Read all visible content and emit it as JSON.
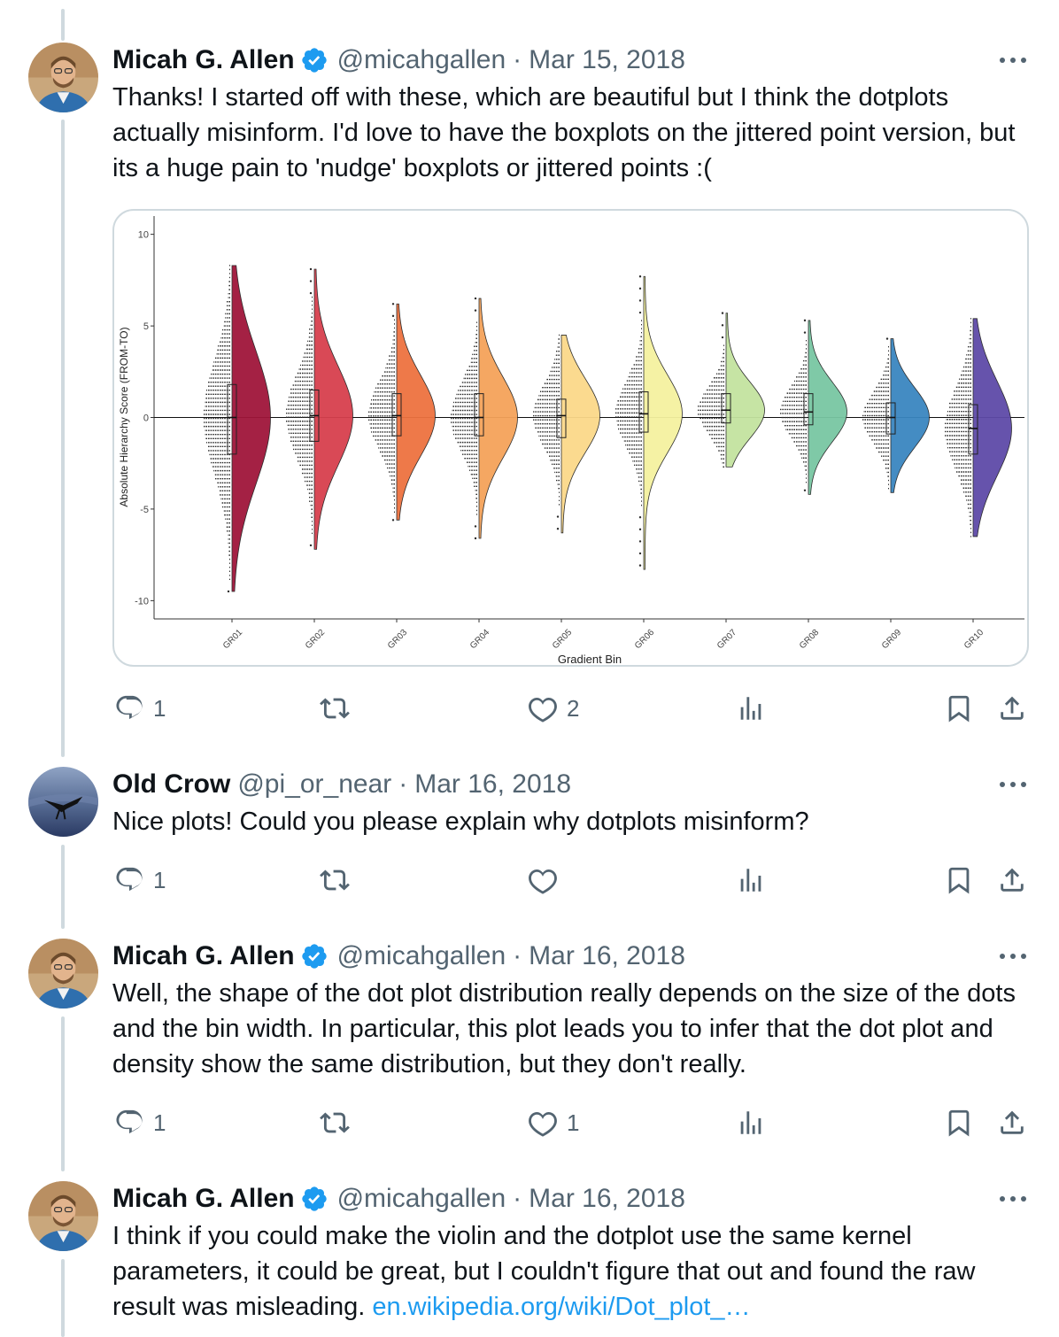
{
  "tweets": [
    {
      "name": "Micah G. Allen",
      "handle": "@micahgallen",
      "date": "Mar 15, 2018",
      "text": "Thanks! I started off with these, which are beautiful but I think the dotplots actually misinform. I'd love to have the boxplots on the jittered point version, but its a huge pain to 'nudge' boxplots or jittered points :(",
      "replies": "1",
      "retweets": "",
      "likes": "2",
      "views": ""
    },
    {
      "name": "Old Crow",
      "handle": "@pi_or_near",
      "date": "Mar 16, 2018",
      "text": "Nice plots! Could you please explain why dotplots misinform?",
      "replies": "1",
      "retweets": "",
      "likes": "",
      "views": ""
    },
    {
      "name": "Micah G. Allen",
      "handle": "@micahgallen",
      "date": "Mar 16, 2018",
      "text": "Well, the shape of the dot plot distribution really depends on the size of the dots and the bin width. In particular, this plot leads you to infer that the dot plot and density show the same distribution, but they don't really.",
      "replies": "1",
      "retweets": "",
      "likes": "1",
      "views": ""
    },
    {
      "name": "Micah G. Allen",
      "handle": "@micahgallen",
      "date": "Mar 16, 2018",
      "text": "I think if you could make the violin and the dotplot use the same kernel parameters, it could be great, but I couldn't figure that out and found the raw result was misleading.",
      "link": "en.wikipedia.org/wiki/Dot_plot_…"
    }
  ],
  "separator": "·",
  "chart_data": {
    "type": "violin-dotplot",
    "xlabel": "Gradient Bin",
    "ylabel": "Absolute Hierarchy Score (FROM-TO)",
    "ylim": [
      -11,
      11
    ],
    "yticks": [
      "10",
      "5",
      "0",
      "-5",
      "-10"
    ],
    "categories": [
      "GR01",
      "GR02",
      "GR03",
      "GR04",
      "GR05",
      "GR06",
      "GR07",
      "GR08",
      "GR09",
      "GR10"
    ],
    "colors": [
      "#a0163a",
      "#d7404e",
      "#ee7240",
      "#f5a35a",
      "#fbd98a",
      "#f5f2a0",
      "#c4e3a0",
      "#79c7a3",
      "#3a86c0",
      "#5e4aa8"
    ],
    "min": [
      -9.5,
      -7.2,
      -5.6,
      -6.6,
      -6.3,
      -8.3,
      -2.7,
      -4.2,
      -4.1,
      -6.5
    ],
    "max": [
      8.3,
      8.1,
      6.2,
      6.5,
      4.5,
      7.7,
      5.7,
      5.3,
      4.3,
      5.4
    ],
    "q1": [
      -2.0,
      -1.3,
      -1.0,
      -1.0,
      -1.1,
      -0.8,
      -0.3,
      -0.4,
      -0.9,
      -2.0
    ],
    "median": [
      0.0,
      0.1,
      0.1,
      0.0,
      0.1,
      0.2,
      0.4,
      0.3,
      0.0,
      -0.6
    ],
    "q3": [
      1.8,
      1.5,
      1.3,
      1.3,
      1.0,
      1.4,
      1.3,
      1.3,
      0.8,
      0.7
    ],
    "zero_line": true,
    "grid": false
  }
}
